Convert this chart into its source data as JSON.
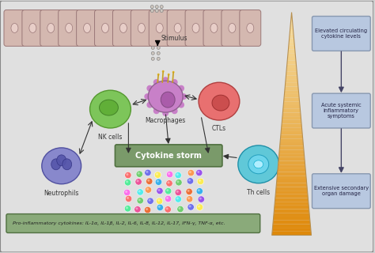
{
  "bg_color": "#d0d0d0",
  "main_bg": "#e0e0e0",
  "cells_color": "#d4b8b0",
  "cell_inner_color": "#e8cec8",
  "stimulus_label": "Stimulus",
  "nk_color": "#7dc55a",
  "nk_inner": "#5aaa30",
  "macro_color": "#c880c8",
  "macro_inner": "#a050a0",
  "ctl_color": "#e87070",
  "ctl_inner": "#c04040",
  "neutro_color": "#8888cc",
  "neutro_inner": "#5555aa",
  "th_color": "#60c8d8",
  "th_inner": "#30a0b8",
  "cytokine_box_color": "#7a9a6a",
  "cytokine_box_text": "Cytokine storm",
  "bottom_box_color": "#8aaa7a",
  "bottom_text": "Pro-inflammatory cytokines: IL-1α, IL-1β, IL-2, IL-6, IL-8, IL-12, IL-17, IFN-γ, TNF-α, etc.",
  "right_box_color": "#b8c8e0",
  "right_box_border": "#8898b0",
  "box1_text": "Elevated circulating\ncytokine levels",
  "box2_text": "Acute systemic\ninflammatory\nsymptoms",
  "box3_text": "Extensive secondary\norgan damage",
  "nk_label": "NK cells",
  "macro_label": "Macrophages",
  "ctl_label": "CTLs",
  "neutro_label": "Neutrophils",
  "th_label": "Th cells",
  "dot_colors": [
    "#ff6060",
    "#60cc60",
    "#6060ee",
    "#ffee40",
    "#ff60ee",
    "#40eeee",
    "#ff9040",
    "#9040ee",
    "#40ee90",
    "#ee4090",
    "#ee6020",
    "#20aaee"
  ]
}
